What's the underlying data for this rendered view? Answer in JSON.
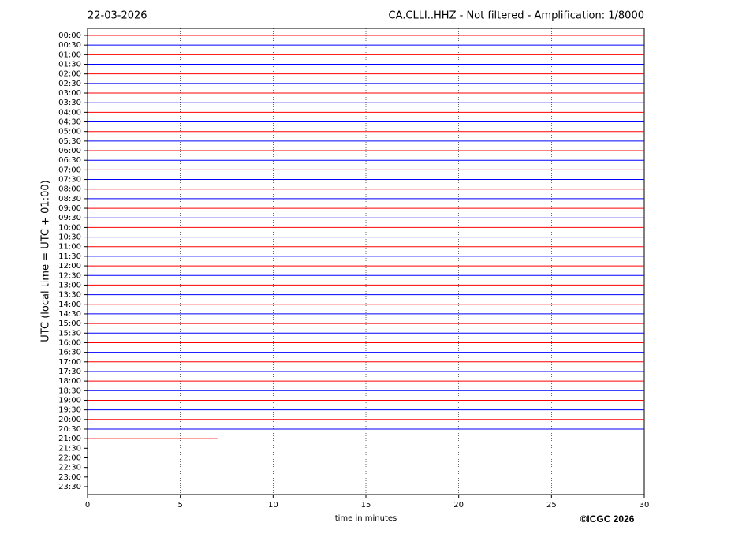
{
  "chart_data": {
    "type": "helicorder",
    "date": "22-03-2026",
    "title": "CA.CLLI..HHZ - Not filtered - Amplification: 1/8000",
    "ylabel": "UTC (local time = UTC + 01:00)",
    "xlabel": "time in minutes",
    "credit": "©ICGC 2026",
    "categories": [
      "00:00",
      "00:30",
      "01:00",
      "01:30",
      "02:00",
      "02:30",
      "03:00",
      "03:30",
      "04:00",
      "04:30",
      "05:00",
      "05:30",
      "06:00",
      "06:30",
      "07:00",
      "07:30",
      "08:00",
      "08:30",
      "09:00",
      "09:30",
      "10:00",
      "10:30",
      "11:00",
      "11:30",
      "12:00",
      "12:30",
      "13:00",
      "13:30",
      "14:00",
      "14:30",
      "15:00",
      "15:30",
      "16:00",
      "16:30",
      "17:00",
      "17:30",
      "18:00",
      "18:30",
      "19:00",
      "19:30",
      "20:00",
      "20:30",
      "21:00",
      "21:30",
      "22:00",
      "22:30",
      "23:00",
      "23:30"
    ],
    "values": [
      30,
      30,
      30,
      30,
      30,
      30,
      30,
      30,
      30,
      30,
      30,
      30,
      30,
      30,
      30,
      30,
      30,
      30,
      30,
      30,
      30,
      30,
      30,
      30,
      30,
      30,
      30,
      30,
      30,
      30,
      30,
      30,
      30,
      30,
      30,
      30,
      30,
      30,
      30,
      30,
      30,
      30,
      7,
      null,
      null,
      null,
      null,
      null
    ],
    "colors": [
      "#ff0000",
      "#0000ff"
    ],
    "xlim": [
      0,
      30
    ],
    "xticks": [
      0,
      5,
      10,
      15,
      20,
      25,
      30
    ],
    "grid": true
  }
}
